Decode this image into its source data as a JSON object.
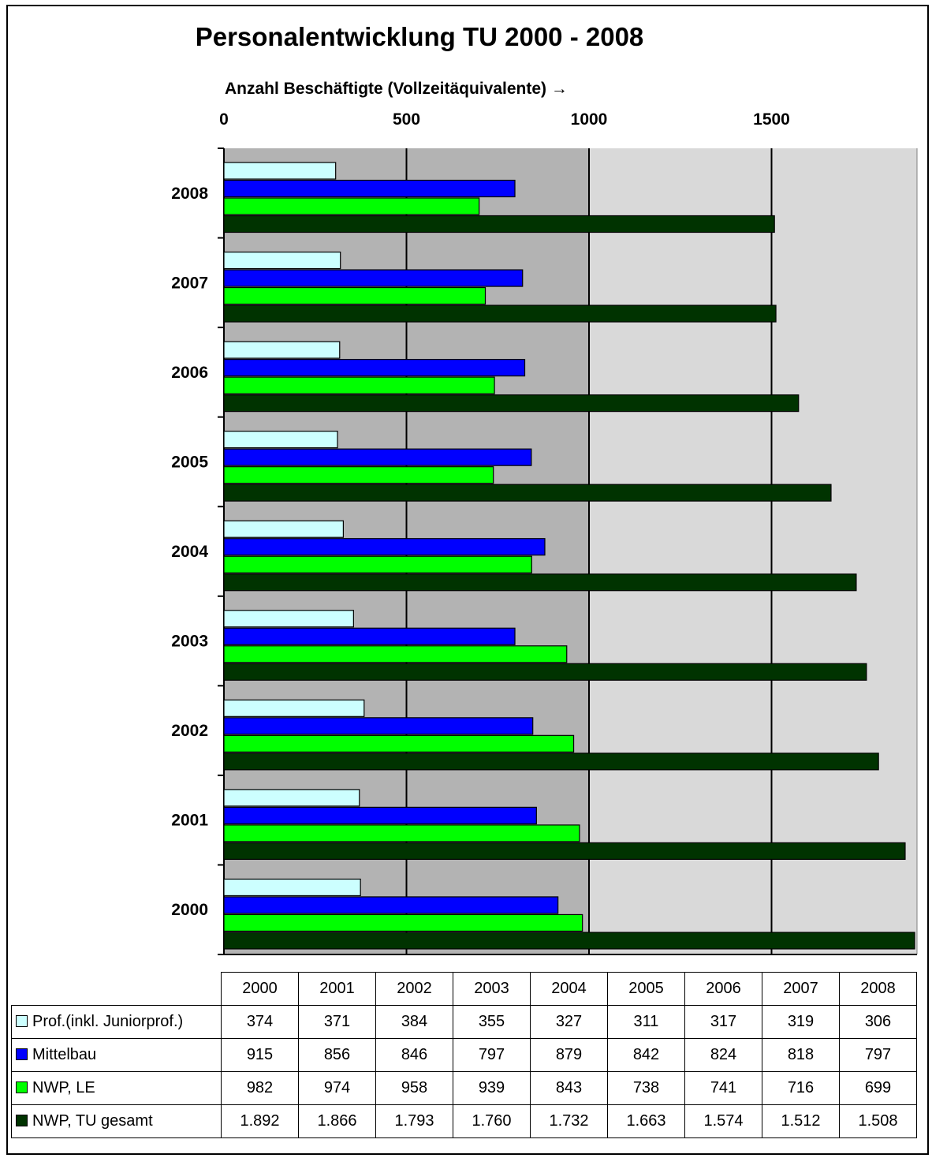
{
  "chart_data": {
    "type": "bar",
    "orientation": "horizontal",
    "title": "Personalentwicklung TU 2000 - 2008",
    "xlabel": "Anzahl Beschäftigte (Vollzeitäquivalente) →",
    "xlim": [
      0,
      1892
    ],
    "xticks": [
      "0",
      "500",
      "1000",
      "1500"
    ],
    "categories": [
      "2008",
      "2007",
      "2006",
      "2005",
      "2004",
      "2003",
      "2002",
      "2001",
      "2000"
    ],
    "table_years": [
      "2000",
      "2001",
      "2002",
      "2003",
      "2004",
      "2005",
      "2006",
      "2007",
      "2008"
    ],
    "series": [
      {
        "name": "Prof.(inkl. Juniorprof.)",
        "color": "#ccffff",
        "values": [
          374,
          371,
          384,
          355,
          327,
          311,
          317,
          319,
          306
        ],
        "labels": [
          "374",
          "371",
          "384",
          "355",
          "327",
          "311",
          "317",
          "319",
          "306"
        ]
      },
      {
        "name": "Mittelbau",
        "color": "#0000ff",
        "values": [
          915,
          856,
          846,
          797,
          879,
          842,
          824,
          818,
          797
        ],
        "labels": [
          "915",
          "856",
          "846",
          "797",
          "879",
          "842",
          "824",
          "818",
          "797"
        ]
      },
      {
        "name": "NWP, LE",
        "color": "#00ff00",
        "values": [
          982,
          974,
          958,
          939,
          843,
          738,
          741,
          716,
          699
        ],
        "labels": [
          "982",
          "974",
          "958",
          "939",
          "843",
          "738",
          "741",
          "716",
          "699"
        ]
      },
      {
        "name": "NWP, TU gesamt",
        "color": "#003300",
        "values": [
          1892,
          1866,
          1793,
          1760,
          1732,
          1663,
          1574,
          1512,
          1508
        ],
        "labels": [
          "1.892",
          "1.866",
          "1.793",
          "1.760",
          "1.732",
          "1.663",
          "1.574",
          "1.512",
          "1.508"
        ]
      }
    ],
    "grid": true,
    "legend": "table"
  }
}
